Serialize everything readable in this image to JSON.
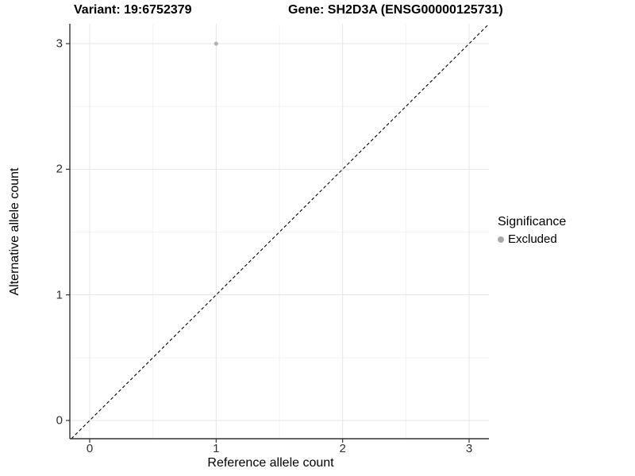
{
  "header": {
    "title_left": "Variant: 19:6752379",
    "title_right": "Gene: SH2D3A (ENSG00000125731)"
  },
  "axes": {
    "x_label": "Reference allele count",
    "y_label": "Alternative allele count"
  },
  "legend": {
    "title": "Significance",
    "items": [
      {
        "label": "Excluded",
        "color": "#aaaaaa"
      }
    ]
  },
  "chart_data": {
    "type": "scatter",
    "title": "Variant: 19:6752379    Gene: SH2D3A (ENSG00000125731)",
    "xlabel": "Reference allele count",
    "ylabel": "Alternative allele count",
    "points": [
      {
        "x": 1,
        "y": 3,
        "series": "Excluded"
      }
    ],
    "series": [
      {
        "name": "Excluded",
        "color": "#b3b3b3",
        "points": [
          {
            "x": 1,
            "y": 3
          }
        ]
      }
    ],
    "x_tick_values": [
      0,
      1,
      2,
      3
    ],
    "x_tick_labels": [
      "0",
      "1",
      "2",
      "3"
    ],
    "y_tick_values": [
      0,
      1,
      2,
      3
    ],
    "y_tick_labels": [
      "0",
      "1",
      "2",
      "3"
    ],
    "x_minor_ticks": [
      0.5,
      1.5,
      2.5
    ],
    "y_minor_ticks": [
      0.5,
      1.5,
      2.5
    ],
    "xlim": [
      -0.157,
      3.157
    ],
    "ylim": [
      -0.145,
      3.158
    ],
    "reference_line": {
      "type": "identity",
      "equation": "y = x",
      "style": "dashed",
      "color": "#000000"
    },
    "grid": "major+minor",
    "legend_position": "right",
    "legend_title": "Significance",
    "legend_entries": [
      "Excluded"
    ],
    "colors": {
      "point": "#b3b3b3",
      "legend_dot": "#aaaaaa",
      "major_grid": "#e6e6e6",
      "minor_grid": "#f2f2f2",
      "axis_line": "#333333",
      "background": "#ffffff",
      "title_text": "#000000",
      "tick_text": "#303030"
    }
  }
}
